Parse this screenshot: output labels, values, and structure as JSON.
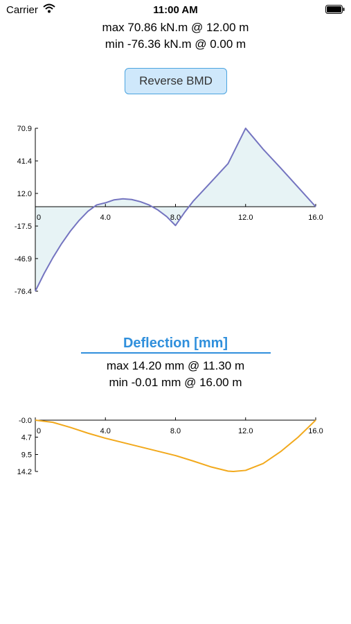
{
  "status": {
    "carrier": "Carrier",
    "time": "11:00 AM"
  },
  "bmd": {
    "max_text": "max 70.86 kN.m @ 12.00 m",
    "min_text": "min -76.36 kN.m @ 0.00 m",
    "reverse_button": "Reverse BMD"
  },
  "deflection": {
    "title": "Deflection [mm]",
    "max_text": "max 14.20 mm @ 11.30 m",
    "min_text": "min -0.01 mm @ 16.00 m"
  },
  "colors": {
    "bmd_line": "#7474c0",
    "bmd_fill": "#e7f3f5",
    "deflection_line": "#f2a91c",
    "accent": "#2f8fdc"
  },
  "chart_data": [
    {
      "type": "area",
      "x": [
        0,
        0.5,
        1,
        1.5,
        2,
        2.5,
        3,
        3.5,
        4,
        4.5,
        5,
        5.5,
        6,
        6.5,
        7,
        7.5,
        8,
        8.5,
        9,
        10,
        11,
        12,
        13,
        14,
        15,
        16
      ],
      "y": [
        -76.36,
        -60.5,
        -46.2,
        -33.4,
        -22.1,
        -12.4,
        -4.2,
        1.6,
        3.5,
        6.2,
        7.1,
        6.5,
        4.5,
        1.5,
        -3.0,
        -9.0,
        -17.0,
        -5.5,
        4.8,
        21.8,
        39.0,
        70.86,
        52.0,
        35.0,
        17.5,
        0
      ],
      "xticks": [
        "0",
        "4.0",
        "8.0",
        "12.0",
        "16.0"
      ],
      "xtick_values": [
        0,
        4,
        8,
        12,
        16
      ],
      "yticks": [
        "70.9",
        "41.4",
        "12.0",
        "-17.5",
        "-46.9",
        "-76.4"
      ],
      "ytick_values": [
        70.9,
        41.4,
        12.0,
        -17.5,
        -46.9,
        -76.4
      ],
      "xlim": [
        0,
        16
      ],
      "ylim": [
        -76.4,
        70.9
      ],
      "grid": false
    },
    {
      "type": "line",
      "x": [
        0,
        1,
        2,
        3,
        4,
        5,
        6,
        7,
        8,
        9,
        10,
        11,
        11.3,
        12,
        13,
        14,
        15,
        16
      ],
      "y": [
        0,
        0.6,
        2.0,
        3.6,
        5.0,
        6.2,
        7.4,
        8.6,
        9.8,
        11.3,
        12.9,
        14.1,
        14.2,
        13.9,
        12.0,
        8.7,
        4.7,
        -0.01
      ],
      "xticks": [
        "0",
        "4.0",
        "8.0",
        "12.0",
        "16.0"
      ],
      "xtick_values": [
        0,
        4,
        8,
        12,
        16
      ],
      "yticks": [
        "-0.0",
        "4.7",
        "9.5",
        "14.2"
      ],
      "ytick_values": [
        0,
        4.7,
        9.5,
        14.2
      ],
      "xlim": [
        0,
        16
      ],
      "ylim": [
        0,
        14.2
      ],
      "y_inverted": true,
      "grid": false
    }
  ]
}
